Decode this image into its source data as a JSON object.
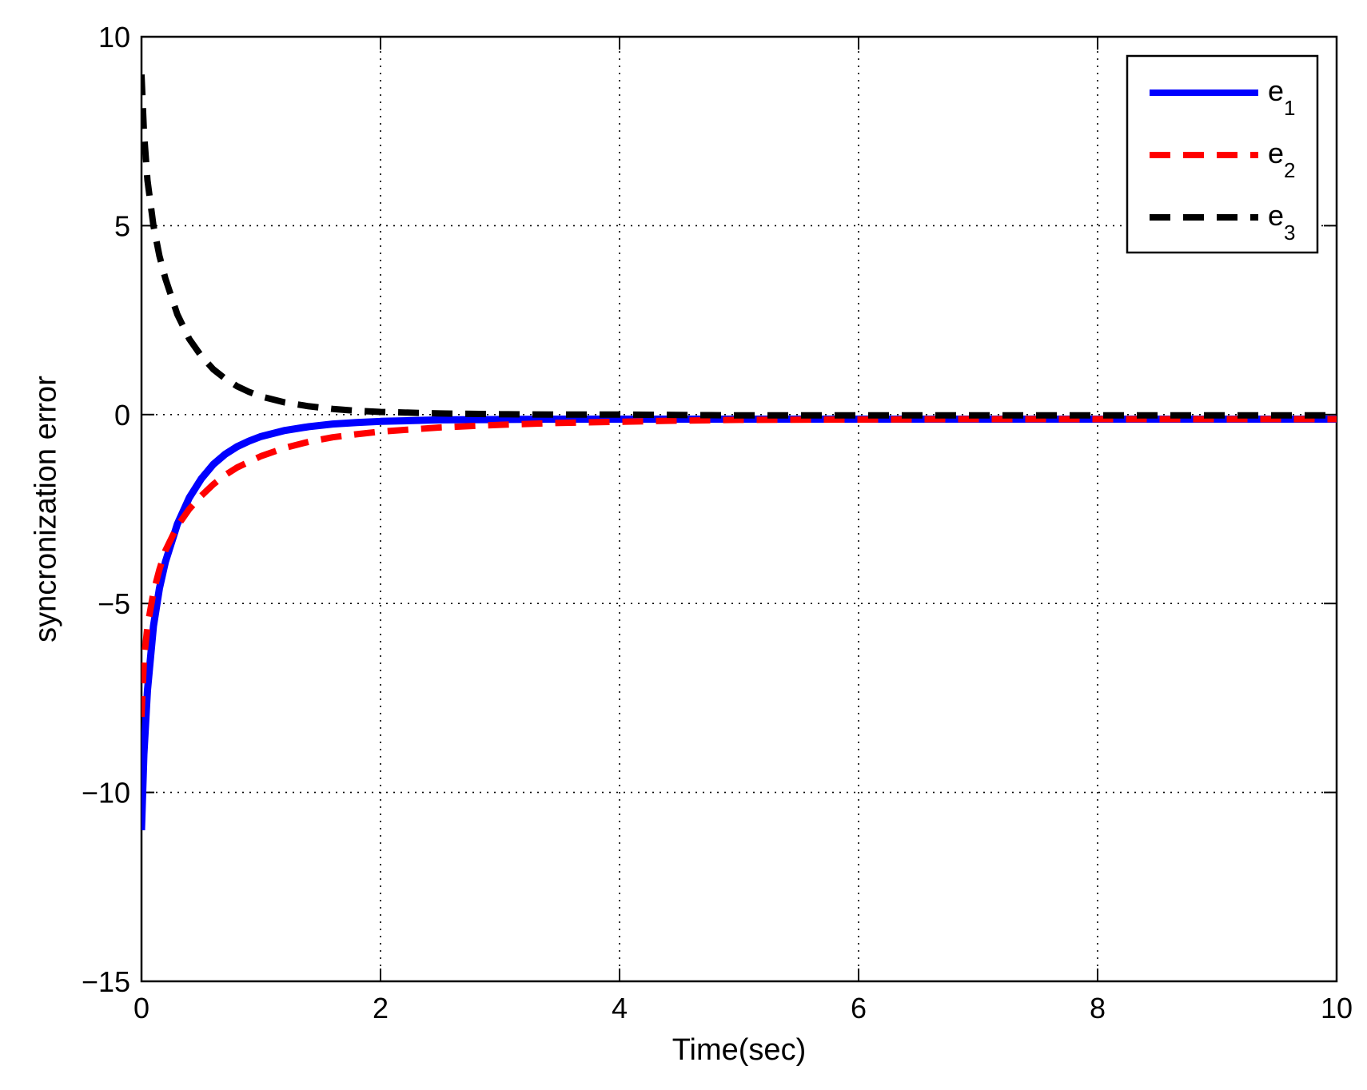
{
  "chart_data": {
    "type": "line",
    "title": "",
    "xlabel": "Time(sec)",
    "ylabel": "syncronization error",
    "xlim": [
      0,
      10
    ],
    "ylim": [
      -15,
      10
    ],
    "xticks": [
      0,
      2,
      4,
      6,
      8,
      10
    ],
    "yticks": [
      10,
      5,
      0,
      -5,
      -10,
      -15
    ],
    "xtick_labels": [
      "0",
      "2",
      "4",
      "6",
      "8",
      "10"
    ],
    "ytick_labels": [
      "10",
      "5",
      "0",
      "−5",
      "−10",
      "−15"
    ],
    "grid": true,
    "legend_position": "top-right",
    "series": [
      {
        "name": "e1",
        "legend_base": "e",
        "legend_sub": "1",
        "color": "#0000ff",
        "style": "solid",
        "x": [
          0,
          0.02,
          0.05,
          0.1,
          0.15,
          0.2,
          0.3,
          0.4,
          0.5,
          0.6,
          0.7,
          0.8,
          0.9,
          1.0,
          1.2,
          1.4,
          1.6,
          1.8,
          2.0,
          2.5,
          3.0,
          3.5,
          4.0,
          5.0,
          6.0,
          7.0,
          8.0,
          9.0,
          10.0
        ],
        "y": [
          -11,
          -9.0,
          -7.3,
          -5.6,
          -4.6,
          -3.9,
          -2.9,
          -2.2,
          -1.7,
          -1.32,
          -1.05,
          -0.85,
          -0.7,
          -0.58,
          -0.42,
          -0.32,
          -0.25,
          -0.21,
          -0.18,
          -0.14,
          -0.13,
          -0.12,
          -0.12,
          -0.12,
          -0.12,
          -0.12,
          -0.12,
          -0.12,
          -0.12
        ]
      },
      {
        "name": "e2",
        "legend_base": "e",
        "legend_sub": "2",
        "color": "#ff0000",
        "style": "dashed",
        "x": [
          0,
          0.02,
          0.05,
          0.1,
          0.15,
          0.2,
          0.3,
          0.4,
          0.5,
          0.6,
          0.7,
          0.8,
          0.9,
          1.0,
          1.2,
          1.4,
          1.6,
          1.8,
          2.0,
          2.5,
          3.0,
          3.5,
          4.0,
          4.5,
          5.0,
          6.0,
          7.0,
          8.0,
          9.0,
          10.0
        ],
        "y": [
          -8,
          -6.5,
          -5.6,
          -4.7,
          -4.1,
          -3.6,
          -2.95,
          -2.5,
          -2.15,
          -1.85,
          -1.6,
          -1.4,
          -1.25,
          -1.1,
          -0.88,
          -0.72,
          -0.6,
          -0.52,
          -0.45,
          -0.34,
          -0.27,
          -0.22,
          -0.19,
          -0.16,
          -0.14,
          -0.13,
          -0.12,
          -0.12,
          -0.12,
          -0.12
        ]
      },
      {
        "name": "e3",
        "legend_base": "e",
        "legend_sub": "3",
        "color": "#000000",
        "style": "dashed",
        "x": [
          0,
          0.02,
          0.05,
          0.1,
          0.15,
          0.2,
          0.3,
          0.4,
          0.5,
          0.6,
          0.7,
          0.8,
          0.9,
          1.0,
          1.2,
          1.4,
          1.6,
          1.8,
          2.0,
          2.5,
          3.0,
          3.5,
          4.0,
          5.0,
          6.0,
          7.0,
          8.0,
          9.0,
          10.0
        ],
        "y": [
          9,
          7.5,
          6.2,
          5.0,
          4.2,
          3.6,
          2.65,
          2.0,
          1.55,
          1.2,
          0.95,
          0.75,
          0.6,
          0.48,
          0.32,
          0.22,
          0.15,
          0.1,
          0.07,
          0.03,
          0.01,
          0.0,
          0.0,
          -0.02,
          -0.02,
          -0.02,
          -0.02,
          -0.02,
          -0.02
        ]
      }
    ]
  }
}
